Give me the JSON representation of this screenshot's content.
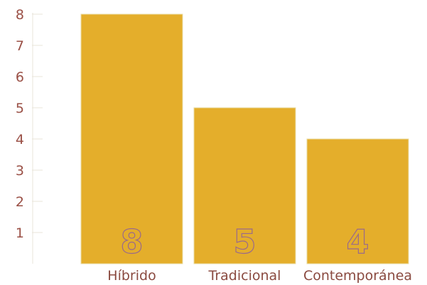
{
  "chart_data": {
    "type": "bar",
    "categories": [
      "Híbrido",
      "Tradicional",
      "Contemporánea"
    ],
    "values": [
      8,
      5,
      4
    ],
    "data_labels": [
      "8",
      "5",
      "4"
    ],
    "title": "",
    "xlabel": "",
    "ylabel": "",
    "ylim": [
      0,
      8
    ],
    "yticks": [
      "1",
      "2",
      "3",
      "4",
      "5",
      "6",
      "7",
      "8"
    ],
    "grid": false,
    "legend": "none",
    "colors": {
      "bar": "#e4ae2b",
      "bar_edge": "#eadca4",
      "tick_text": "#9a5046",
      "category_text": "#8a4a40",
      "data_label_fill": "#e4ae2b",
      "data_label_stroke": "#9a6a8a",
      "axis": "#e8e4da"
    }
  }
}
